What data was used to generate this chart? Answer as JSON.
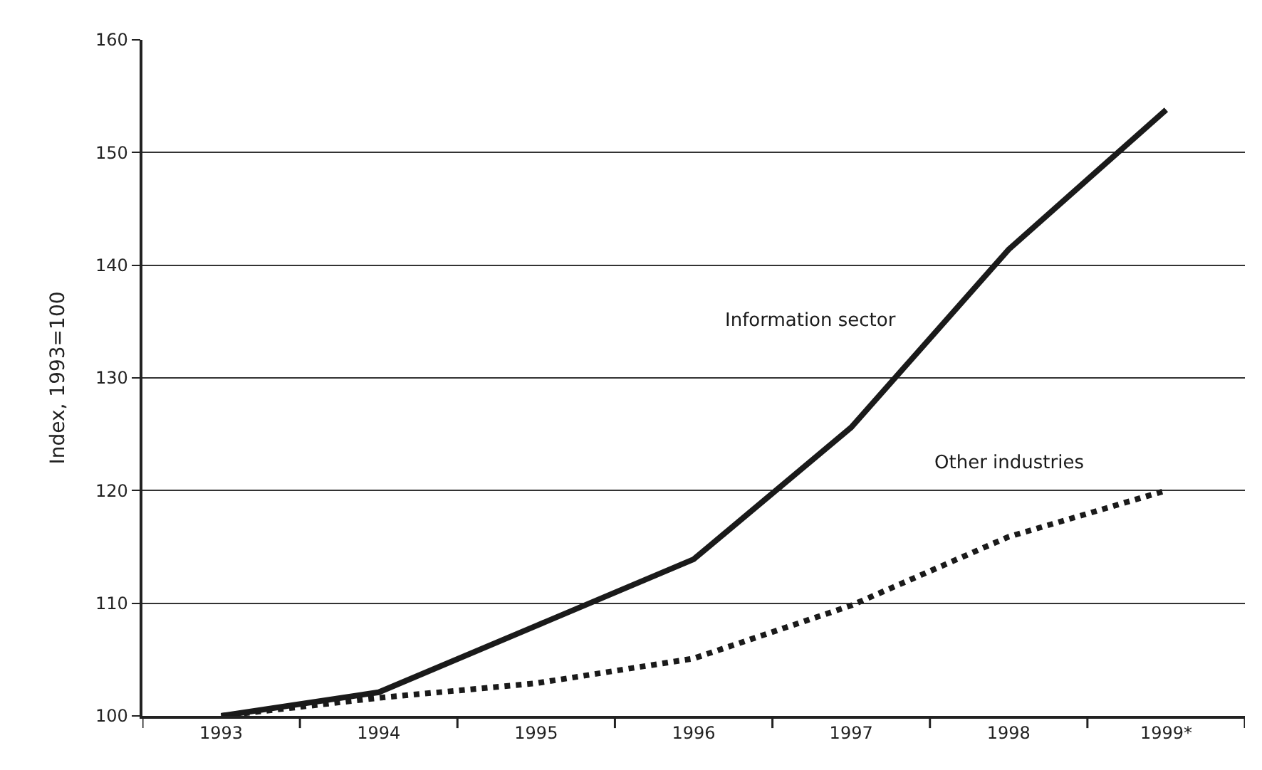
{
  "chart_data": {
    "type": "line",
    "ylabel": "Index, 1993=100",
    "categories": [
      "1993",
      "1994",
      "1995",
      "1996",
      "1997",
      "1998",
      "1999*"
    ],
    "series": [
      {
        "name": "Information sector",
        "color": "#1a1a1a",
        "line_style": "solid",
        "values": [
          100,
          102.1,
          108,
          113.9,
          125.6,
          141.4,
          153.8
        ]
      },
      {
        "name": "Other industries",
        "color": "#1a1a1a",
        "line_style": "dotted",
        "values": [
          100,
          101.6,
          102.9,
          105.1,
          109.8,
          115.9,
          120
        ]
      }
    ],
    "ylim": [
      100,
      160
    ],
    "yticks": [
      100,
      110,
      120,
      130,
      140,
      150,
      160
    ],
    "grid": "y",
    "marker": "none"
  }
}
